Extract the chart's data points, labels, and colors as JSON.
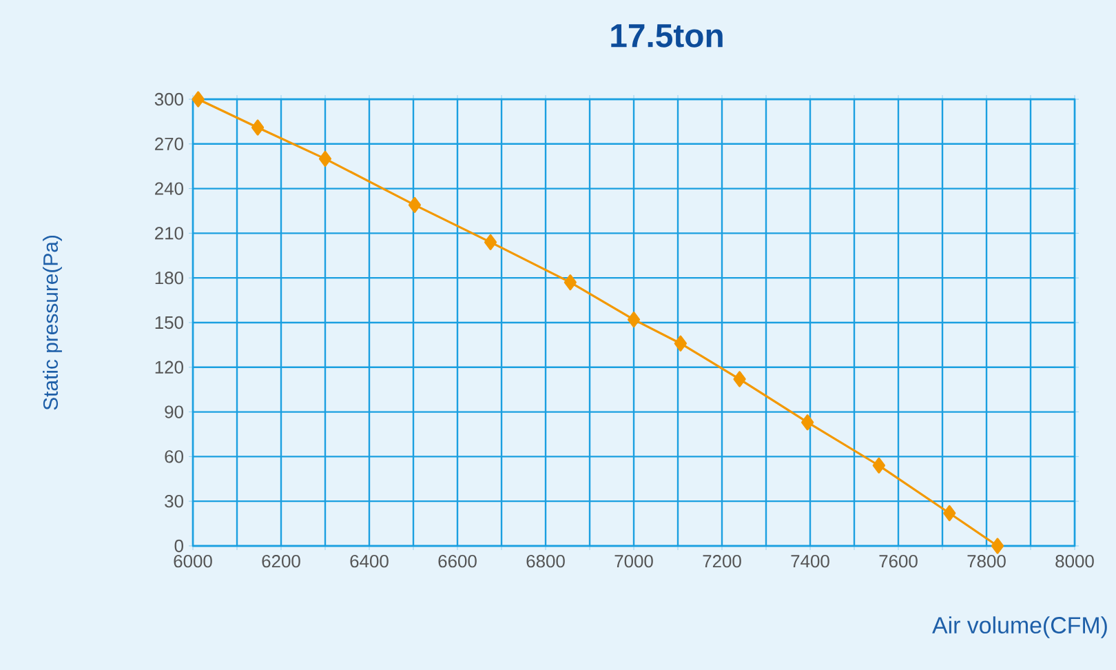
{
  "chart_data": {
    "type": "line",
    "title": "17.5ton",
    "xlabel": "Air volume(CFM)",
    "ylabel": "Static pressure(Pa)",
    "x": [
      6012,
      6147,
      6300,
      6503,
      6675,
      6856,
      7000,
      7106,
      7240,
      7394,
      7556,
      7716,
      7825
    ],
    "series": [
      {
        "color": "#f39800",
        "values": [
          300,
          281,
          260,
          229,
          204,
          177,
          152,
          136,
          112,
          83,
          54,
          22,
          0
        ]
      }
    ],
    "xlim": [
      6000,
      8000
    ],
    "xticks": [
      6000,
      {
        "value": 6100,
        "label": null
      },
      6200,
      {
        "value": 6300,
        "label": null
      },
      6400,
      {
        "value": 6500,
        "label": null
      },
      6600,
      {
        "value": 6700,
        "label": null
      },
      6800,
      {
        "value": 6900,
        "label": null
      },
      7000,
      {
        "value": 7100,
        "label": null
      },
      7200,
      {
        "value": 7300,
        "label": null
      },
      7400,
      {
        "value": 7500,
        "label": null
      },
      7600,
      {
        "value": 7700,
        "label": null
      },
      7800,
      {
        "value": 7900,
        "label": null
      },
      8000
    ],
    "ylim": [
      0,
      300
    ],
    "yticks": [
      0,
      30,
      60,
      90,
      120,
      150,
      180,
      210,
      240,
      270,
      300
    ],
    "grid": true,
    "marker": "diamond",
    "line_style": "solid"
  }
}
